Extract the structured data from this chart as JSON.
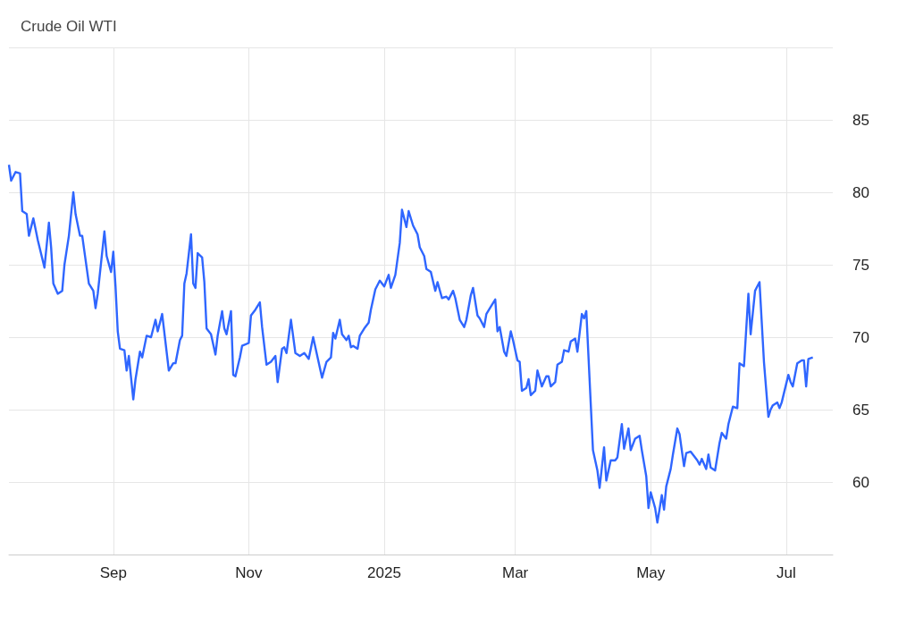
{
  "chart_data": {
    "type": "line",
    "title": "Crude Oil WTI",
    "grid": true,
    "marker": "none",
    "xlim": [
      "2024-07-16",
      "2025-07-22"
    ],
    "xticks": [
      {
        "value": "2024-09-01",
        "label": "Sep"
      },
      {
        "value": "2024-11-01",
        "label": "Nov"
      },
      {
        "value": "2025-01-01",
        "label": "2025"
      },
      {
        "value": "2025-03-01",
        "label": "Mar"
      },
      {
        "value": "2025-05-01",
        "label": "May"
      },
      {
        "value": "2025-07-01",
        "label": "Jul"
      }
    ],
    "ylim": [
      55,
      90
    ],
    "yticks": [
      {
        "value": 55,
        "label": null
      },
      60,
      65,
      70,
      75,
      80,
      85,
      {
        "value": 90,
        "label": null
      }
    ],
    "x": [
      "2024-07-16",
      "2024-07-17",
      "2024-07-19",
      "2024-07-21",
      "2024-07-22",
      "2024-07-24",
      "2024-07-25",
      "2024-07-27",
      "2024-07-29",
      "2024-08-01",
      "2024-08-03",
      "2024-08-04",
      "2024-08-05",
      "2024-08-07",
      "2024-08-09",
      "2024-08-10",
      "2024-08-12",
      "2024-08-14",
      "2024-08-15",
      "2024-08-17",
      "2024-08-18",
      "2024-08-21",
      "2024-08-23",
      "2024-08-24",
      "2024-08-25",
      "2024-08-28",
      "2024-08-29",
      "2024-08-31",
      "2024-09-01",
      "2024-09-02",
      "2024-09-03",
      "2024-09-04",
      "2024-09-06",
      "2024-09-07",
      "2024-09-08",
      "2024-09-10",
      "2024-09-11",
      "2024-09-13",
      "2024-09-14",
      "2024-09-16",
      "2024-09-18",
      "2024-09-20",
      "2024-09-21",
      "2024-09-23",
      "2024-09-26",
      "2024-09-28",
      "2024-09-29",
      "2024-10-01",
      "2024-10-02",
      "2024-10-03",
      "2024-10-04",
      "2024-10-06",
      "2024-10-07",
      "2024-10-08",
      "2024-10-09",
      "2024-10-11",
      "2024-10-12",
      "2024-10-13",
      "2024-10-15",
      "2024-10-17",
      "2024-10-18",
      "2024-10-20",
      "2024-10-21",
      "2024-10-22",
      "2024-10-24",
      "2024-10-25",
      "2024-10-26",
      "2024-10-28",
      "2024-10-29",
      "2024-11-01",
      "2024-11-02",
      "2024-11-04",
      "2024-11-06",
      "2024-11-07",
      "2024-11-09",
      "2024-11-11",
      "2024-11-13",
      "2024-11-14",
      "2024-11-16",
      "2024-11-17",
      "2024-11-18",
      "2024-11-20",
      "2024-11-22",
      "2024-11-24",
      "2024-11-26",
      "2024-11-28",
      "2024-11-30",
      "2024-12-02",
      "2024-12-04",
      "2024-12-06",
      "2024-12-08",
      "2024-12-09",
      "2024-12-10",
      "2024-12-12",
      "2024-12-13",
      "2024-12-15",
      "2024-12-16",
      "2024-12-17",
      "2024-12-18",
      "2024-12-20",
      "2024-12-21",
      "2024-12-23",
      "2024-12-25",
      "2024-12-26",
      "2024-12-28",
      "2024-12-30",
      "2025-01-01",
      "2025-01-03",
      "2025-01-04",
      "2025-01-06",
      "2025-01-08",
      "2025-01-09",
      "2025-01-11",
      "2025-01-12",
      "2025-01-14",
      "2025-01-16",
      "2025-01-17",
      "2025-01-19",
      "2025-01-20",
      "2025-01-22",
      "2025-01-24",
      "2025-01-25",
      "2025-01-27",
      "2025-01-29",
      "2025-01-30",
      "2025-02-01",
      "2025-02-02",
      "2025-02-04",
      "2025-02-06",
      "2025-02-07",
      "2025-02-09",
      "2025-02-10",
      "2025-02-12",
      "2025-02-13",
      "2025-02-15",
      "2025-02-16",
      "2025-02-18",
      "2025-02-20",
      "2025-02-21",
      "2025-02-22",
      "2025-02-24",
      "2025-02-25",
      "2025-02-27",
      "2025-02-28",
      "2025-03-02",
      "2025-03-03",
      "2025-03-04",
      "2025-03-06",
      "2025-03-07",
      "2025-03-08",
      "2025-03-10",
      "2025-03-11",
      "2025-03-13",
      "2025-03-15",
      "2025-03-16",
      "2025-03-17",
      "2025-03-19",
      "2025-03-20",
      "2025-03-22",
      "2025-03-23",
      "2025-03-25",
      "2025-03-26",
      "2025-03-28",
      "2025-03-29",
      "2025-03-31",
      "2025-04-01",
      "2025-04-02",
      "2025-04-05",
      "2025-04-07",
      "2025-04-08",
      "2025-04-10",
      "2025-04-11",
      "2025-04-13",
      "2025-04-15",
      "2025-04-16",
      "2025-04-18",
      "2025-04-19",
      "2025-04-21",
      "2025-04-22",
      "2025-04-24",
      "2025-04-26",
      "2025-04-27",
      "2025-04-29",
      "2025-04-30",
      "2025-05-01",
      "2025-05-03",
      "2025-05-04",
      "2025-05-06",
      "2025-05-07",
      "2025-05-08",
      "2025-05-10",
      "2025-05-11",
      "2025-05-13",
      "2025-05-14",
      "2025-05-16",
      "2025-05-17",
      "2025-05-19",
      "2025-05-20",
      "2025-05-22",
      "2025-05-23",
      "2025-05-24",
      "2025-05-26",
      "2025-05-27",
      "2025-05-28",
      "2025-05-30",
      "2025-06-01",
      "2025-06-02",
      "2025-06-04",
      "2025-06-05",
      "2025-06-07",
      "2025-06-09",
      "2025-06-10",
      "2025-06-12",
      "2025-06-14",
      "2025-06-15",
      "2025-06-17",
      "2025-06-18",
      "2025-06-19",
      "2025-06-21",
      "2025-06-23",
      "2025-06-24",
      "2025-06-25",
      "2025-06-27",
      "2025-06-28",
      "2025-06-29",
      "2025-07-02",
      "2025-07-03",
      "2025-07-04",
      "2025-07-06",
      "2025-07-08",
      "2025-07-09",
      "2025-07-10",
      "2025-07-11",
      "2025-07-13"
    ],
    "series": [
      {
        "color": "#2f66ff",
        "values": [
          81.9,
          80.8,
          81.4,
          81.3,
          78.7,
          78.5,
          77.0,
          78.2,
          76.7,
          74.8,
          77.9,
          76.2,
          73.7,
          73.0,
          73.2,
          75.0,
          77.0,
          80.0,
          78.5,
          77.0,
          77.0,
          73.7,
          73.2,
          72.0,
          73.0,
          77.3,
          75.6,
          74.5,
          75.9,
          73.5,
          70.4,
          69.2,
          69.1,
          67.7,
          68.7,
          65.7,
          67.1,
          69.0,
          68.6,
          70.1,
          70.0,
          71.2,
          70.4,
          71.6,
          67.7,
          68.2,
          68.2,
          69.8,
          70.1,
          73.7,
          74.4,
          77.1,
          73.7,
          73.4,
          75.8,
          75.5,
          73.8,
          70.6,
          70.2,
          68.8,
          70.1,
          71.8,
          70.6,
          70.2,
          71.8,
          67.4,
          67.3,
          68.6,
          69.4,
          69.6,
          71.5,
          71.9,
          72.4,
          70.7,
          68.1,
          68.3,
          68.7,
          66.9,
          69.2,
          69.3,
          68.9,
          71.2,
          68.9,
          68.7,
          68.9,
          68.5,
          70.0,
          68.6,
          67.2,
          68.3,
          68.6,
          70.3,
          69.9,
          71.2,
          70.2,
          69.8,
          70.1,
          69.3,
          69.4,
          69.2,
          70.1,
          70.6,
          71.0,
          71.9,
          73.3,
          73.9,
          73.5,
          74.3,
          73.4,
          74.3,
          76.5,
          78.8,
          77.6,
          78.7,
          77.7,
          77.1,
          76.2,
          75.6,
          74.7,
          74.5,
          73.2,
          73.8,
          72.7,
          72.8,
          72.6,
          73.2,
          72.7,
          71.2,
          70.7,
          71.2,
          72.9,
          73.4,
          71.5,
          71.3,
          70.7,
          71.6,
          72.1,
          72.6,
          70.4,
          70.7,
          69.0,
          68.7,
          70.4,
          69.8,
          68.4,
          68.3,
          66.3,
          66.5,
          67.1,
          66.0,
          66.3,
          67.7,
          66.6,
          67.3,
          67.3,
          66.6,
          66.9,
          68.1,
          68.3,
          69.1,
          69.0,
          69.7,
          69.9,
          69.0,
          71.6,
          71.3,
          71.8,
          62.2,
          60.8,
          59.6,
          62.4,
          60.1,
          61.5,
          61.5,
          61.7,
          64.0,
          62.3,
          63.7,
          62.2,
          63.0,
          63.2,
          62.2,
          60.4,
          58.2,
          59.3,
          58.2,
          57.2,
          59.1,
          58.1,
          59.7,
          60.9,
          61.9,
          63.7,
          63.3,
          61.1,
          62.0,
          62.1,
          61.9,
          61.5,
          61.2,
          61.6,
          60.9,
          61.9,
          61.0,
          60.8,
          62.7,
          63.4,
          63.0,
          64.0,
          65.2,
          65.1,
          68.2,
          68.0,
          73.0,
          70.2,
          73.2,
          73.5,
          73.8,
          68.3,
          64.5,
          65.0,
          65.3,
          65.5,
          65.1,
          65.5,
          67.4,
          66.9,
          66.6,
          68.2,
          68.4,
          68.4,
          66.6,
          68.5,
          68.6
        ]
      }
    ]
  }
}
